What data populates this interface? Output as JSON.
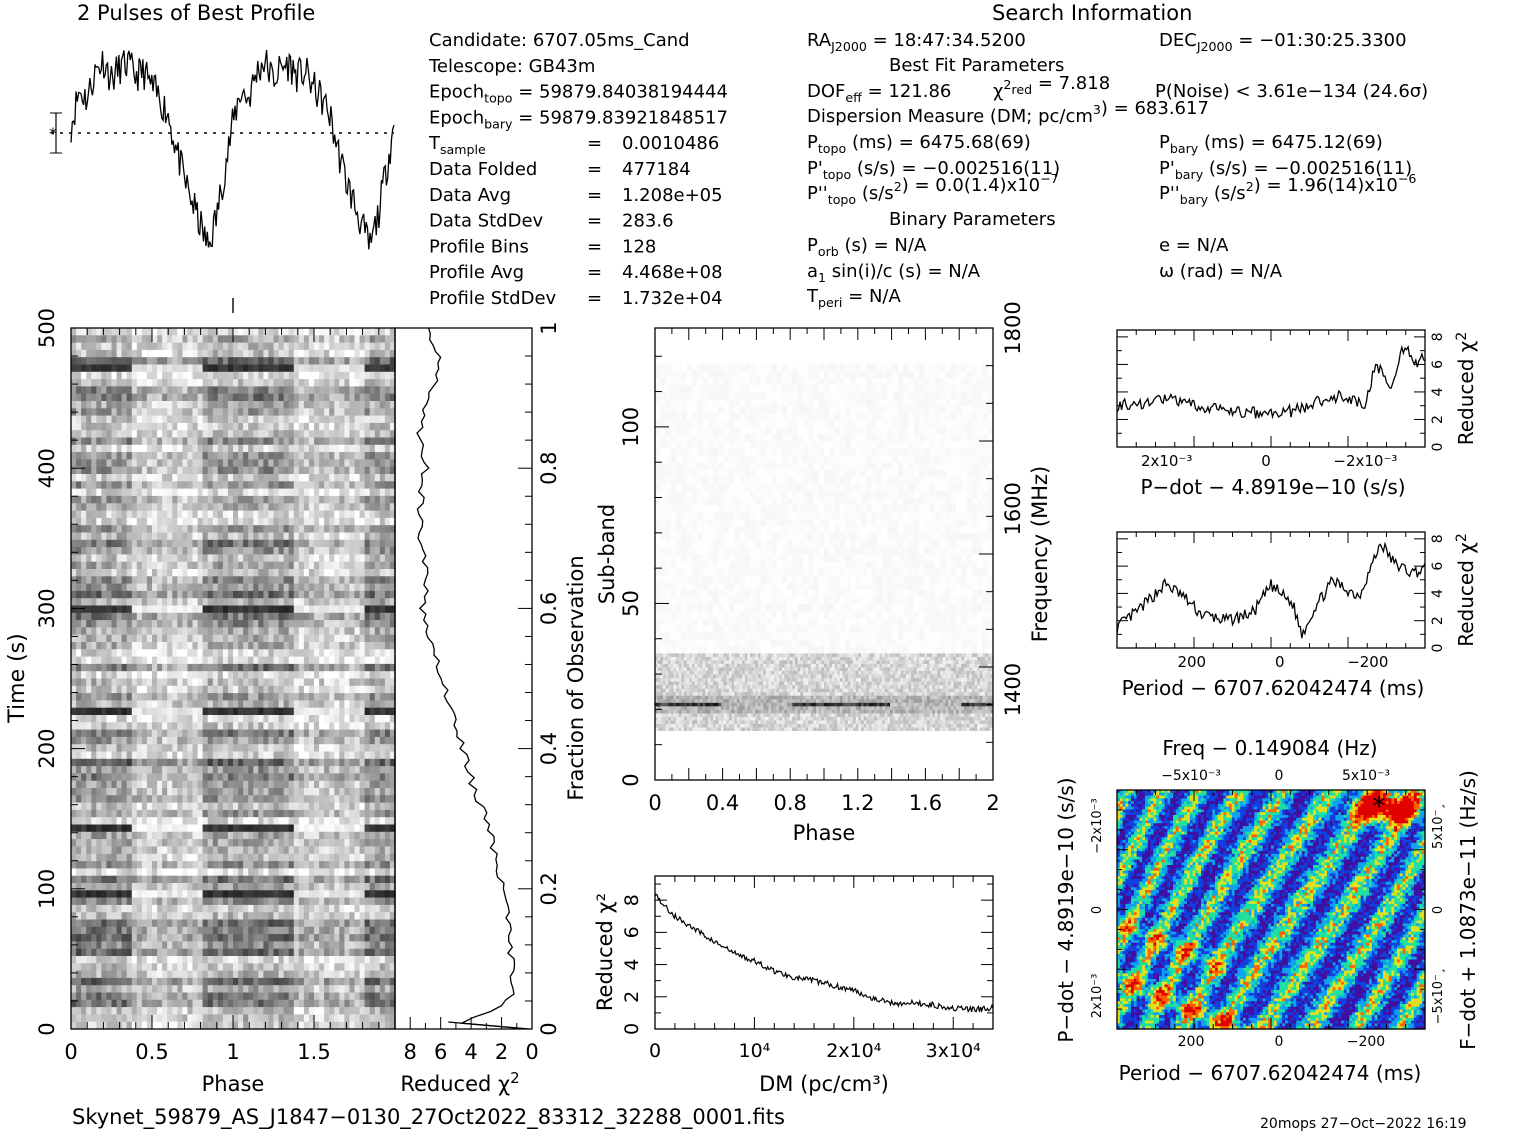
{
  "profile_title": "2 Pulses of Best Profile",
  "search_title": "Search Information",
  "candidate_info": [
    {
      "label": "Candidate:",
      "value": "6707.05ms_Cand"
    },
    {
      "label": "Telescope:",
      "value": "GB43m"
    },
    {
      "label": "Epoch",
      "sub": "topo",
      "value": "= 59879.84038194444"
    },
    {
      "label": "Epoch",
      "sub": "bary",
      "value": "= 59879.83921848517"
    },
    {
      "label": "T",
      "sub": "sample",
      "value": "0.0010486"
    },
    {
      "label": "Data Folded",
      "value": "477184"
    },
    {
      "label": "Data Avg",
      "value": "1.208e+05"
    },
    {
      "label": "Data StdDev",
      "value": "283.6"
    },
    {
      "label": "Profile Bins",
      "value": "128"
    },
    {
      "label": "Profile Avg",
      "value": "4.468e+08"
    },
    {
      "label": "Profile StdDev",
      "value": "1.732e+04"
    }
  ],
  "search_info": {
    "ra": {
      "label": "RA",
      "sub": "J2000",
      "value": "= 18:47:34.5200"
    },
    "dec": {
      "label": "DEC",
      "sub": "J2000",
      "value": "= −01:30:25.3300"
    },
    "best_fit_title": "Best Fit Parameters",
    "dof": {
      "label": "DOF",
      "sub": "eff",
      "value": "= 121.86"
    },
    "chi2": {
      "sym": "χ",
      "sup": "2",
      "sub": "red",
      "value": "= 7.818"
    },
    "pnoise": "P(Noise) < 3.61e−134   (24.6σ)",
    "dm": {
      "label": "Dispersion Measure (DM; pc/cm",
      "sup": "3",
      "value": ") = 683.617"
    },
    "ptopo": {
      "label": "P",
      "sub": "topo",
      "value": "(ms) =  6475.68(69)"
    },
    "pbary": {
      "label": "P",
      "sub": "bary",
      "value": "(ms) =  6475.12(69)"
    },
    "pdtopo": {
      "label": "P'",
      "sub": "topo",
      "value": "(s/s) = −0.002516(11)"
    },
    "pdbary": {
      "label": "P'",
      "sub": "bary",
      "value": "(s/s) = −0.002516(11)"
    },
    "pddtopo": {
      "label": "P''",
      "sub": "topo",
      "value_a": "(s/s",
      "sup_a": "2",
      "value_b": ") = 0.0(1.4)x10",
      "sup_b": "−7"
    },
    "pddbary": {
      "label": "P''",
      "sub": "bary",
      "value_a": "(s/s",
      "sup_a": "2",
      "value_b": ") =  1.96(14)x10",
      "sup_b": "−6"
    },
    "binary_title": "Binary Parameters",
    "porb": {
      "label": "P",
      "sub": "orb",
      "value": "(s) = N/A"
    },
    "ecc": "e = N/A",
    "a1": {
      "label": "a",
      "sub": "1",
      "value": "sin(i)/c (s) = N/A"
    },
    "omega": "ω (rad) = N/A",
    "tperi": {
      "label": "T",
      "sub": "peri",
      "value": "= N/A"
    }
  },
  "footer": {
    "filename": "Skynet_59879_AS_J1847−0130_27Oct2022_83312_32288_0001.fits",
    "stamp": "20mops 27−Oct−2022 16:19"
  },
  "colors": {
    "axis": "#000000",
    "background": "#ffffff"
  },
  "chart_data": [
    {
      "type": "line",
      "name": "best_profile",
      "title": "2 Pulses of Best Profile",
      "x_range": [
        0,
        2
      ],
      "shape": "two cycles: near baseline with spikes, deep dip centred at phase ~0.85 and ~1.85",
      "phase": [
        0,
        0.05,
        0.1,
        0.15,
        0.2,
        0.25,
        0.3,
        0.35,
        0.4,
        0.45,
        0.5,
        0.55,
        0.6,
        0.65,
        0.7,
        0.75,
        0.8,
        0.85,
        0.9,
        0.95,
        1.0
      ],
      "values": [
        0.1,
        0.55,
        0.45,
        0.8,
        0.95,
        0.7,
        0.85,
        0.9,
        0.75,
        0.8,
        0.6,
        0.45,
        0.25,
        -0.2,
        -0.6,
        -0.9,
        -1.2,
        -1.5,
        -1.1,
        -0.5,
        0.1
      ]
    },
    {
      "type": "heatmap",
      "name": "time_vs_phase",
      "xlabel": "Phase",
      "ylabel": "Time (s)",
      "x_ticks": [
        "0",
        "0.5",
        "1",
        "1.5"
      ],
      "y_ticks": [
        "0",
        "100",
        "200",
        "300",
        "400",
        "500"
      ],
      "xlim": [
        0,
        2
      ],
      "ylim": [
        0,
        500
      ],
      "dark_rows_s": [
        475,
        300,
        230,
        148,
        100
      ]
    },
    {
      "type": "line",
      "name": "time_reduced_chi2",
      "xlabel": "Reduced χ²",
      "ylabel_right": "Fraction of Observation",
      "x_ticks": [
        "8",
        "6",
        "4",
        "2",
        "0"
      ],
      "y_ticks": [
        "0",
        "0.2",
        "0.4",
        "0.6",
        "0.8",
        "1"
      ],
      "xlim": [
        9,
        0
      ],
      "ylim": [
        0,
        1
      ],
      "frac": [
        0.0,
        0.01,
        0.02,
        0.05,
        0.1,
        0.15,
        0.2,
        0.25,
        0.3,
        0.35,
        0.4,
        0.45,
        0.5,
        0.55,
        0.6,
        0.65,
        0.7,
        0.75,
        0.8,
        0.85,
        0.9,
        0.95,
        1.0
      ],
      "chi2": [
        0.2,
        5.5,
        3.0,
        1.3,
        1.4,
        1.6,
        2.0,
        2.4,
        3.0,
        3.9,
        4.5,
        5.2,
        6.0,
        6.5,
        7.2,
        6.8,
        7.5,
        7.3,
        7.0,
        7.4,
        6.8,
        6.0,
        6.8
      ]
    },
    {
      "type": "heatmap",
      "name": "subband_vs_phase",
      "xlabel": "Phase",
      "ylabel": "Sub-band",
      "ylabel_right": "Frequency (MHz)",
      "x_ticks": [
        "0",
        "0.4",
        "0.8",
        "1.2",
        "1.6",
        "2"
      ],
      "y_ticks": [
        "0",
        "50",
        "100"
      ],
      "y_ticks_right": [
        "1400",
        "1600",
        "1800"
      ],
      "xlim": [
        0,
        2
      ],
      "ylim": [
        0,
        128
      ],
      "signal_subbands": [
        14,
        36
      ],
      "pulse_subband": 21
    },
    {
      "type": "line",
      "name": "dm_curve",
      "xlabel": "DM (pc/cm³)",
      "ylabel": "Reduced χ²",
      "x_ticks": [
        "0",
        "10⁴",
        "2x10⁴",
        "3x10⁴"
      ],
      "y_ticks": [
        "0",
        "2",
        "4",
        "6",
        "8"
      ],
      "xlim": [
        0,
        34000
      ],
      "ylim": [
        0,
        9.5
      ],
      "x": [
        0,
        1000,
        2000,
        4000,
        6000,
        8000,
        10000,
        12000,
        14000,
        16000,
        18000,
        20000,
        22000,
        24000,
        26000,
        28000,
        30000,
        32000,
        34000
      ],
      "y": [
        8.4,
        7.6,
        7.0,
        6.2,
        5.4,
        4.7,
        4.2,
        3.6,
        3.2,
        3.0,
        2.7,
        2.4,
        1.9,
        1.6,
        1.6,
        1.5,
        1.3,
        1.2,
        1.3
      ]
    },
    {
      "type": "line",
      "name": "pdot_curve",
      "xlabel": "P−dot − 4.8919e−10 (s/s)",
      "ylabel": "Reduced χ²",
      "x_ticks": [
        "2x10⁻³",
        "0",
        "−2x10⁻³"
      ],
      "y_ticks": [
        "0",
        "2",
        "4",
        "6",
        "8"
      ],
      "xlim": [
        0.003,
        -0.0032
      ],
      "ylim": [
        0,
        8.5
      ],
      "x": [
        0.003,
        0.0025,
        0.002,
        0.0015,
        0.001,
        0.0005,
        0.0,
        -0.0005,
        -0.001,
        -0.0015,
        -0.002,
        -0.0022,
        -0.0025,
        -0.0028,
        -0.003,
        -0.0032
      ],
      "y": [
        3.0,
        3.2,
        3.5,
        3.0,
        2.8,
        2.5,
        2.4,
        2.6,
        3.2,
        3.8,
        3.0,
        6.0,
        4.5,
        7.5,
        6.0,
        6.5
      ]
    },
    {
      "type": "line",
      "name": "period_curve",
      "xlabel": "Period − 6707.62042474 (ms)",
      "ylabel": "Reduced χ²",
      "x_ticks": [
        "200",
        "0",
        "−200"
      ],
      "y_ticks": [
        "0",
        "2",
        "4",
        "6",
        "8"
      ],
      "xlim": [
        370,
        -330
      ],
      "ylim": [
        0,
        8.5
      ],
      "x": [
        370,
        320,
        260,
        220,
        180,
        120,
        60,
        20,
        -30,
        -50,
        -80,
        -120,
        -180,
        -230,
        -260,
        -300,
        -330
      ],
      "y": [
        1.5,
        2.8,
        4.7,
        3.8,
        2.5,
        2.0,
        2.6,
        4.6,
        3.2,
        1.0,
        3.0,
        4.9,
        3.8,
        7.7,
        6.2,
        5.5,
        5.8
      ]
    },
    {
      "type": "heatmap",
      "name": "period_pdot_plane",
      "title": "Freq − 0.149084 (Hz)",
      "xlabel": "Period − 6707.62042474 (ms)",
      "ylabel": "P−dot − 4.8919e−10 (s/s)",
      "ylabel_right": "F−dot + 1.0873e−11 (Hz/s)",
      "x_ticks": [
        "200",
        "0",
        "−200"
      ],
      "x_ticks_top": [
        "−5x10⁻³",
        "0",
        "5x10⁻³"
      ],
      "y_ticks": [
        "−2x10⁻³",
        "0",
        "2x10⁻³"
      ],
      "y_ticks_right": [
        "5x10⁻¸",
        "0",
        "−5x10⁻¸"
      ],
      "colormap": [
        "#4010a0",
        "#1040e0",
        "#10a0f0",
        "#20e0a0",
        "#e0e020",
        "#ff6000",
        "#e00000"
      ],
      "best_fit_marker": "*"
    }
  ]
}
